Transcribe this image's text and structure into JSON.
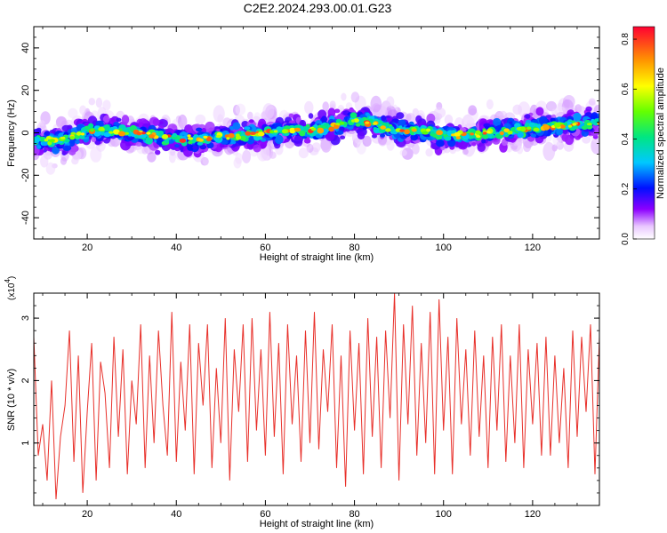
{
  "title": "C2E2.2024.293.00.01.G23",
  "chart_data": [
    {
      "type": "heatmap",
      "xlabel": "Height of straight line (km)",
      "ylabel": "Frequency (Hz)",
      "xlim": [
        8,
        135
      ],
      "ylim": [
        -50,
        50
      ],
      "xticks": [
        20,
        40,
        60,
        80,
        100,
        120
      ],
      "yticks": [
        -40,
        -20,
        0,
        20,
        40
      ],
      "colorbar": {
        "label": "Normalized spectral amplitude",
        "range": [
          0,
          0.85
        ],
        "ticks": [
          0.0,
          0.2,
          0.4,
          0.6,
          0.8
        ],
        "tick_labels": [
          "0.0",
          "0.2",
          "0.4",
          "0.6",
          "0.8"
        ]
      },
      "band_center_hz": [
        {
          "x": 8,
          "y": -4
        },
        {
          "x": 15,
          "y": -3
        },
        {
          "x": 20,
          "y": 1
        },
        {
          "x": 25,
          "y": 1
        },
        {
          "x": 30,
          "y": 0
        },
        {
          "x": 35,
          "y": -1
        },
        {
          "x": 40,
          "y": -3
        },
        {
          "x": 45,
          "y": -3
        },
        {
          "x": 50,
          "y": -2
        },
        {
          "x": 55,
          "y": -1
        },
        {
          "x": 60,
          "y": 0
        },
        {
          "x": 65,
          "y": 1
        },
        {
          "x": 70,
          "y": 1
        },
        {
          "x": 75,
          "y": 3
        },
        {
          "x": 80,
          "y": 6
        },
        {
          "x": 85,
          "y": 4
        },
        {
          "x": 90,
          "y": 1
        },
        {
          "x": 95,
          "y": 1
        },
        {
          "x": 100,
          "y": -1
        },
        {
          "x": 105,
          "y": -1
        },
        {
          "x": 110,
          "y": 0
        },
        {
          "x": 115,
          "y": 1
        },
        {
          "x": 120,
          "y": 2
        },
        {
          "x": 125,
          "y": 3
        },
        {
          "x": 130,
          "y": 4
        },
        {
          "x": 135,
          "y": 5
        }
      ],
      "band_halfwidth_hz": 6,
      "peak_amplitude": 0.82,
      "grid": false
    },
    {
      "type": "line",
      "xlabel": "Height of straight line (km)",
      "ylabel": "SNR (10 * v/v)",
      "y_multiplier_label": "(x10",
      "y_multiplier_exponent": "4",
      "y_multiplier_close": ")",
      "xlim": [
        8,
        135
      ],
      "ylim": [
        0,
        3.4
      ],
      "xticks": [
        20,
        40,
        60,
        80,
        100,
        120
      ],
      "yticks": [
        1,
        2,
        3
      ],
      "color": "#e8302a",
      "series": [
        {
          "x": [
            8,
            9,
            10,
            11,
            12,
            13,
            14,
            15,
            16,
            17,
            18,
            19,
            20,
            21,
            22,
            23,
            24,
            25,
            26,
            27,
            28,
            29,
            30,
            31,
            32,
            33,
            34,
            35,
            36,
            37,
            38,
            39,
            40,
            41,
            42,
            43,
            44,
            45,
            46,
            47,
            48,
            49,
            50,
            51,
            52,
            53,
            54,
            55,
            56,
            57,
            58,
            59,
            60,
            61,
            62,
            63,
            64,
            65,
            66,
            67,
            68,
            69,
            70,
            71,
            72,
            73,
            74,
            75,
            76,
            77,
            78,
            79,
            80,
            81,
            82,
            83,
            84,
            85,
            86,
            87,
            88,
            89,
            90,
            91,
            92,
            93,
            94,
            95,
            96,
            97,
            98,
            99,
            100,
            101,
            102,
            103,
            104,
            105,
            106,
            107,
            108,
            109,
            110,
            111,
            112,
            113,
            114,
            115,
            116,
            117,
            118,
            119,
            120,
            121,
            122,
            123,
            124,
            125,
            126,
            127,
            128,
            129,
            130,
            131,
            132,
            133,
            134,
            135
          ],
          "y": [
            2.7,
            0.8,
            1.3,
            0.4,
            2.0,
            0.1,
            1.1,
            1.6,
            2.8,
            0.7,
            2.4,
            0.2,
            1.5,
            2.6,
            0.4,
            2.3,
            1.8,
            0.6,
            2.7,
            1.1,
            2.5,
            0.5,
            2.0,
            1.3,
            2.9,
            0.6,
            2.4,
            1.0,
            2.8,
            1.6,
            0.8,
            3.1,
            0.7,
            2.3,
            1.2,
            2.9,
            0.5,
            2.6,
            1.6,
            2.9,
            0.6,
            2.2,
            1.0,
            3.0,
            0.4,
            2.5,
            1.5,
            2.9,
            0.7,
            3.0,
            1.2,
            2.5,
            0.8,
            3.1,
            1.1,
            2.6,
            0.5,
            2.9,
            1.3,
            2.4,
            0.7,
            2.8,
            1.0,
            3.1,
            0.9,
            2.5,
            1.5,
            2.9,
            0.6,
            2.4,
            0.3,
            2.8,
            1.2,
            2.6,
            0.5,
            3.0,
            1.1,
            2.7,
            0.6,
            2.8,
            1.4,
            3.4,
            0.4,
            2.9,
            1.3,
            3.2,
            0.8,
            2.6,
            1.0,
            3.1,
            0.5,
            3.3,
            1.2,
            2.7,
            0.5,
            3.0,
            1.3,
            2.5,
            0.8,
            2.8,
            1.1,
            2.4,
            0.6,
            2.7,
            1.2,
            2.9,
            0.7,
            2.4,
            1.0,
            2.9,
            0.6,
            2.5,
            1.3,
            2.6,
            0.8,
            2.7,
            0.8,
            2.4,
            1.0,
            2.2,
            0.6,
            2.8,
            1.1,
            2.7,
            1.5,
            2.9,
            0.5,
            2.7
          ]
        }
      ],
      "grid": false
    }
  ]
}
